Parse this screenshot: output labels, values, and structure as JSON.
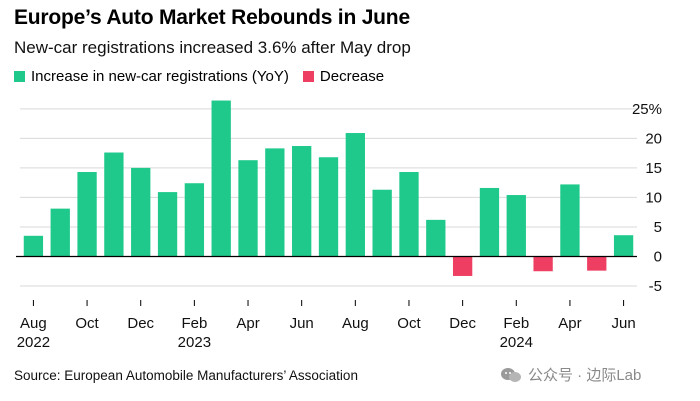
{
  "title": "Europe’s Auto Market Rebounds in June",
  "subtitle": "New-car registrations increased 3.6% after May drop",
  "legend": [
    {
      "label": "Increase in new-car registrations (YoY)",
      "color": "#1fc98c"
    },
    {
      "label": "Decrease",
      "color": "#ee3f62"
    }
  ],
  "source": "Source: European Automobile Manufacturers’ Association",
  "watermark": "公众号 · 边际Lab",
  "chart_data": {
    "type": "bar",
    "title": "Europe’s Auto Market Rebounds in June",
    "ylabel": "",
    "xlabel": "",
    "ylim": [
      -5,
      27
    ],
    "yticks": [
      25,
      20,
      15,
      10,
      5,
      0,
      -5
    ],
    "ytick_labels": [
      "25%",
      "20",
      "15",
      "10",
      "5",
      "0",
      "-5"
    ],
    "axis_side": "right",
    "grid": true,
    "categories": [
      "Aug 2022",
      "Sep 2022",
      "Oct 2022",
      "Nov 2022",
      "Dec 2022",
      "Jan 2023",
      "Feb 2023",
      "Mar 2023",
      "Apr 2023",
      "May 2023",
      "Jun 2023",
      "Jul 2023",
      "Aug 2023",
      "Sep 2023",
      "Oct 2023",
      "Nov 2023",
      "Dec 2023",
      "Jan 2024",
      "Feb 2024",
      "Mar 2024",
      "Apr 2024",
      "May 2024",
      "Jun 2024"
    ],
    "values": [
      3.5,
      8.1,
      14.3,
      17.6,
      15.0,
      10.9,
      12.4,
      26.4,
      16.3,
      18.3,
      18.7,
      16.8,
      20.9,
      11.3,
      14.3,
      6.2,
      -3.3,
      11.6,
      10.4,
      -2.5,
      12.2,
      -2.4,
      3.6
    ],
    "x_labels": [
      {
        "index": 0,
        "label": "Aug",
        "sub": "2022"
      },
      {
        "index": 2,
        "label": "Oct",
        "sub": ""
      },
      {
        "index": 4,
        "label": "Dec",
        "sub": ""
      },
      {
        "index": 6,
        "label": "Feb",
        "sub": "2023"
      },
      {
        "index": 8,
        "label": "Apr",
        "sub": ""
      },
      {
        "index": 10,
        "label": "Jun",
        "sub": ""
      },
      {
        "index": 12,
        "label": "Aug",
        "sub": ""
      },
      {
        "index": 14,
        "label": "Oct",
        "sub": ""
      },
      {
        "index": 16,
        "label": "Dec",
        "sub": ""
      },
      {
        "index": 18,
        "label": "Feb",
        "sub": "2024"
      },
      {
        "index": 20,
        "label": "Apr",
        "sub": ""
      },
      {
        "index": 22,
        "label": "Jun",
        "sub": ""
      }
    ],
    "colors": {
      "positive": "#1fc98c",
      "negative": "#ee3f62",
      "grid": "#d9d9d9",
      "axis": "#000000"
    }
  }
}
